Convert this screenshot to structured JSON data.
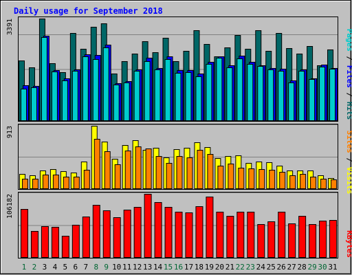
{
  "title": "Daily usage for September 2018",
  "colors": {
    "background": "#c0c0c0",
    "title": "#0000ff",
    "hits": "#006666",
    "files": "#0000ff",
    "pages": "#00cccc",
    "visits": "#ffff00",
    "sites": "#ff8000",
    "kbytes": "#ff0000",
    "weekend_label": "#006633",
    "weekday_label": "#000000"
  },
  "chart_data": [
    {
      "type": "bar",
      "title": "Daily usage for September 2018",
      "categories": [
        "1",
        "2",
        "3",
        "4",
        "5",
        "6",
        "7",
        "8",
        "9",
        "10",
        "11",
        "12",
        "13",
        "14",
        "15",
        "16",
        "17",
        "18",
        "19",
        "20",
        "21",
        "22",
        "23",
        "24",
        "25",
        "26",
        "27",
        "28",
        "29",
        "30",
        "31"
      ],
      "weekend_days": [
        "1",
        "2",
        "8",
        "9",
        "15",
        "16",
        "22",
        "23",
        "29",
        "30"
      ],
      "ymax_label": "3391",
      "ylim": [
        0,
        3391
      ],
      "series": [
        {
          "name": "Hits",
          "values": [
            2000,
            1780,
            3391,
            1920,
            1610,
            2920,
            2400,
            3120,
            3240,
            1570,
            1990,
            2230,
            2650,
            2270,
            2760,
            1970,
            2310,
            3000,
            2540,
            2130,
            2430,
            2850,
            2400,
            3000,
            2310,
            2920,
            2410,
            2230,
            2480,
            1850,
            2360
          ]
        },
        {
          "name": "Files",
          "values": [
            1180,
            1150,
            2820,
            1680,
            1400,
            1700,
            2200,
            2180,
            2530,
            1260,
            1330,
            1700,
            2100,
            1750,
            2130,
            1690,
            1680,
            1560,
            1960,
            2150,
            1840,
            2160,
            1950,
            1840,
            1760,
            1730,
            1350,
            1700,
            1420,
            1870,
            1760
          ]
        },
        {
          "name": "Pages",
          "values": [
            1080,
            1110,
            2780,
            1640,
            1350,
            1660,
            2150,
            2050,
            2440,
            1200,
            1280,
            1650,
            1980,
            1700,
            2050,
            1600,
            1620,
            1490,
            1900,
            2100,
            1780,
            2080,
            1900,
            1820,
            1700,
            1650,
            1280,
            1650,
            1380,
            1800,
            1720
          ]
        }
      ]
    },
    {
      "type": "bar",
      "categories": [
        "1",
        "2",
        "3",
        "4",
        "5",
        "6",
        "7",
        "8",
        "9",
        "10",
        "11",
        "12",
        "13",
        "14",
        "15",
        "16",
        "17",
        "18",
        "19",
        "20",
        "21",
        "22",
        "23",
        "24",
        "25",
        "26",
        "27",
        "28",
        "29",
        "30",
        "31"
      ],
      "ymax_label": "913",
      "ylim": [
        0,
        913
      ],
      "series": [
        {
          "name": "Visits",
          "values": [
            215,
            200,
            270,
            285,
            255,
            240,
            395,
            913,
            680,
            440,
            640,
            700,
            570,
            600,
            460,
            580,
            600,
            670,
            610,
            445,
            480,
            490,
            380,
            400,
            390,
            340,
            270,
            270,
            270,
            195,
            155
          ]
        },
        {
          "name": "Sites",
          "values": [
            150,
            150,
            210,
            205,
            175,
            180,
            280,
            720,
            550,
            360,
            560,
            620,
            590,
            480,
            380,
            480,
            460,
            570,
            510,
            340,
            370,
            310,
            300,
            290,
            280,
            250,
            200,
            220,
            180,
            150,
            135
          ]
        }
      ]
    },
    {
      "type": "bar",
      "categories": [
        "1",
        "2",
        "3",
        "4",
        "5",
        "6",
        "7",
        "8",
        "9",
        "10",
        "11",
        "12",
        "13",
        "14",
        "15",
        "16",
        "17",
        "18",
        "19",
        "20",
        "21",
        "22",
        "23",
        "24",
        "25",
        "26",
        "27",
        "28",
        "29",
        "30",
        "31"
      ],
      "ymax_label": "106182",
      "ylim": [
        0,
        106182
      ],
      "series": [
        {
          "name": "KBytes",
          "values": [
            81000,
            44000,
            53000,
            51000,
            37000,
            55000,
            68000,
            88000,
            79000,
            67000,
            80000,
            85000,
            106182,
            92000,
            84000,
            77000,
            75000,
            86000,
            102000,
            77000,
            70000,
            76000,
            77000,
            56000,
            60000,
            77000,
            57000,
            70000,
            56000,
            62000,
            63000
          ]
        }
      ]
    }
  ],
  "labels": {
    "hits": "Hits",
    "files": "Files",
    "pages": "Pages",
    "visits": "Visits",
    "sites": "Sites",
    "kbytes": "KBytes",
    "separator": " / "
  }
}
